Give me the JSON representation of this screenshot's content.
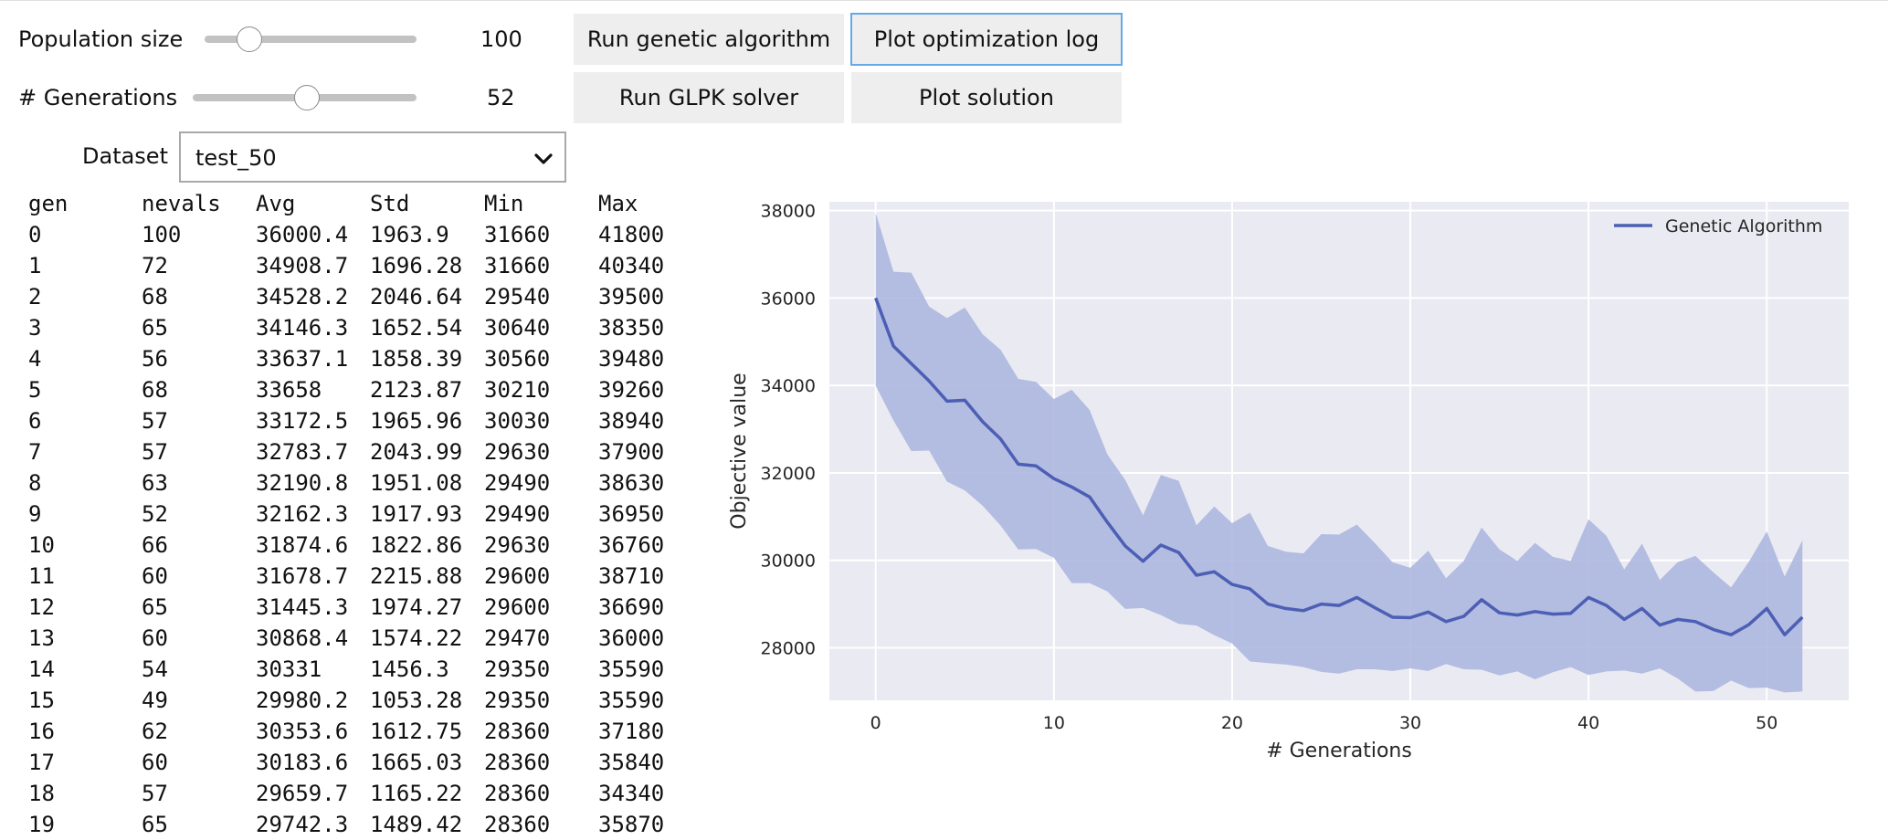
{
  "controls": {
    "population": {
      "label": "Population size",
      "value": "100",
      "min": 10,
      "max": 500,
      "level": 0.21
    },
    "generations": {
      "label": "# Generations",
      "value": "52",
      "min": 1,
      "max": 100,
      "level": 0.51
    },
    "dataset": {
      "label": "Dataset",
      "value": "test_50"
    }
  },
  "buttons": {
    "run_ga": "Run genetic algorithm",
    "plot_log": "Plot optimization log",
    "run_glpk": "Run GLPK solver",
    "plot_solution": "Plot solution"
  },
  "log": {
    "headers": [
      "gen",
      "nevals",
      "Avg",
      "Std",
      "Min",
      "Max"
    ],
    "rows": [
      [
        "0",
        "100",
        "36000.4",
        "1963.9",
        "31660",
        "41800"
      ],
      [
        "1",
        "72",
        "34908.7",
        "1696.28",
        "31660",
        "40340"
      ],
      [
        "2",
        "68",
        "34528.2",
        "2046.64",
        "29540",
        "39500"
      ],
      [
        "3",
        "65",
        "34146.3",
        "1652.54",
        "30640",
        "38350"
      ],
      [
        "4",
        "56",
        "33637.1",
        "1858.39",
        "30560",
        "39480"
      ],
      [
        "5",
        "68",
        "33658",
        "2123.87",
        "30210",
        "39260"
      ],
      [
        "6",
        "57",
        "33172.5",
        "1965.96",
        "30030",
        "38940"
      ],
      [
        "7",
        "57",
        "32783.7",
        "2043.99",
        "29630",
        "37900"
      ],
      [
        "8",
        "63",
        "32190.8",
        "1951.08",
        "29490",
        "38630"
      ],
      [
        "9",
        "52",
        "32162.3",
        "1917.93",
        "29490",
        "36950"
      ],
      [
        "10",
        "66",
        "31874.6",
        "1822.86",
        "29630",
        "36760"
      ],
      [
        "11",
        "60",
        "31678.7",
        "2215.88",
        "29600",
        "38710"
      ],
      [
        "12",
        "65",
        "31445.3",
        "1974.27",
        "29600",
        "36690"
      ],
      [
        "13",
        "60",
        "30868.4",
        "1574.22",
        "29470",
        "36000"
      ],
      [
        "14",
        "54",
        "30331",
        "1456.3",
        "29350",
        "35590"
      ],
      [
        "15",
        "49",
        "29980.2",
        "1053.28",
        "29350",
        "35590"
      ],
      [
        "16",
        "62",
        "30353.6",
        "1612.75",
        "28360",
        "37180"
      ],
      [
        "17",
        "60",
        "30183.6",
        "1665.03",
        "28360",
        "35840"
      ],
      [
        "18",
        "57",
        "29659.7",
        "1165.22",
        "28360",
        "34340"
      ],
      [
        "19",
        "65",
        "29742.3",
        "1489.42",
        "28360",
        "35870"
      ]
    ]
  },
  "chart_data": {
    "type": "line",
    "title": "",
    "xlabel": "# Generations",
    "ylabel": "Objective value",
    "xlim": [
      -2.6,
      54.6
    ],
    "ylim": [
      26800,
      38200
    ],
    "xticks": [
      0,
      10,
      20,
      30,
      40,
      50
    ],
    "yticks": [
      28000,
      30000,
      32000,
      34000,
      36000,
      38000
    ],
    "grid": true,
    "legend_position": "top-right",
    "series": [
      {
        "name": "Genetic Algorithm",
        "color": "#4c5fb5",
        "band_color": "#a9b4de",
        "x": [
          0,
          1,
          2,
          3,
          4,
          5,
          6,
          7,
          8,
          9,
          10,
          11,
          12,
          13,
          14,
          15,
          16,
          17,
          18,
          19,
          20,
          21,
          22,
          23,
          24,
          25,
          26,
          27,
          28,
          29,
          30,
          31,
          32,
          33,
          34,
          35,
          36,
          37,
          38,
          39,
          40,
          41,
          42,
          43,
          44,
          45,
          46,
          47,
          48,
          49,
          50,
          51,
          52
        ],
        "mean": [
          36000,
          34900,
          34500,
          34100,
          33640,
          33660,
          33170,
          32780,
          32200,
          32160,
          31870,
          31680,
          31450,
          30870,
          30330,
          29980,
          30350,
          30180,
          29660,
          29740,
          29450,
          29350,
          29000,
          28900,
          28850,
          29000,
          28970,
          29150,
          28920,
          28700,
          28690,
          28820,
          28600,
          28720,
          29100,
          28800,
          28750,
          28830,
          28770,
          28790,
          29150,
          28970,
          28650,
          28900,
          28520,
          28650,
          28600,
          28420,
          28300,
          28530,
          28900,
          28300,
          28700
        ],
        "upper": [
          37950,
          36600,
          36580,
          35800,
          35540,
          35780,
          35170,
          34820,
          34150,
          34080,
          33690,
          33900,
          33440,
          32420,
          31840,
          31030,
          31950,
          31820,
          30800,
          31230,
          30850,
          31090,
          30330,
          30200,
          30160,
          30600,
          30590,
          30820,
          30400,
          29960,
          29830,
          30220,
          29590,
          29990,
          30750,
          30250,
          29990,
          30400,
          30080,
          29990,
          30940,
          30560,
          29790,
          30380,
          29550,
          29960,
          30100,
          29730,
          29380,
          29970,
          30660,
          29630,
          30460
        ],
        "lower": [
          34000,
          33200,
          32500,
          32510,
          31800,
          31600,
          31250,
          30800,
          30250,
          30260,
          30060,
          29480,
          29480,
          29290,
          28890,
          28910,
          28750,
          28550,
          28510,
          28290,
          28100,
          27690,
          27650,
          27620,
          27560,
          27450,
          27410,
          27510,
          27510,
          27470,
          27530,
          27470,
          27630,
          27510,
          27500,
          27370,
          27460,
          27280,
          27440,
          27560,
          27380,
          27460,
          27480,
          27410,
          27530,
          27300,
          27000,
          27010,
          27250,
          27080,
          27090,
          26980,
          27000
        ]
      }
    ]
  }
}
